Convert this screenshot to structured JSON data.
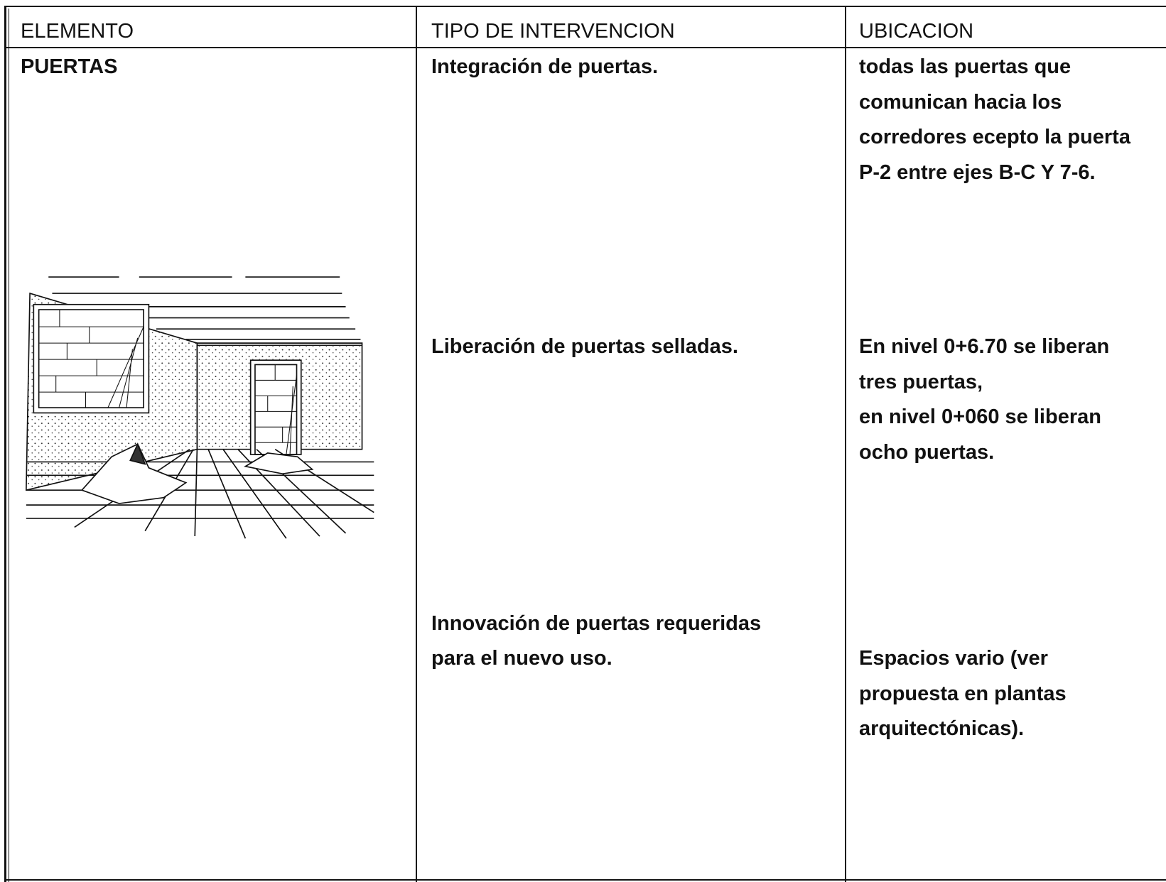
{
  "header": {
    "columns": [
      "ELEMENTO",
      "TIPO DE INTERVENCION",
      "UBICACION"
    ]
  },
  "row": {
    "elemento": "PUERTAS",
    "intervenciones": [
      [
        "Integración de puertas."
      ],
      [
        "Liberación de puertas selladas."
      ],
      [
        "Innovación de puertas requeridas",
        "para el nuevo uso."
      ]
    ],
    "ubicaciones": [
      [
        "todas las puertas que",
        "comunican hacia los",
        "corredores ecepto la puerta",
        "P-2 entre ejes B-C Y 7-6."
      ],
      [
        "En nivel 0+6.70 se liberan",
        "tres puertas,",
        "en nivel 0+060 se liberan",
        "ocho puertas."
      ],
      [
        "Espacios vario (ver",
        "propuesta en plantas",
        "arquitectónicas)."
      ]
    ]
  }
}
